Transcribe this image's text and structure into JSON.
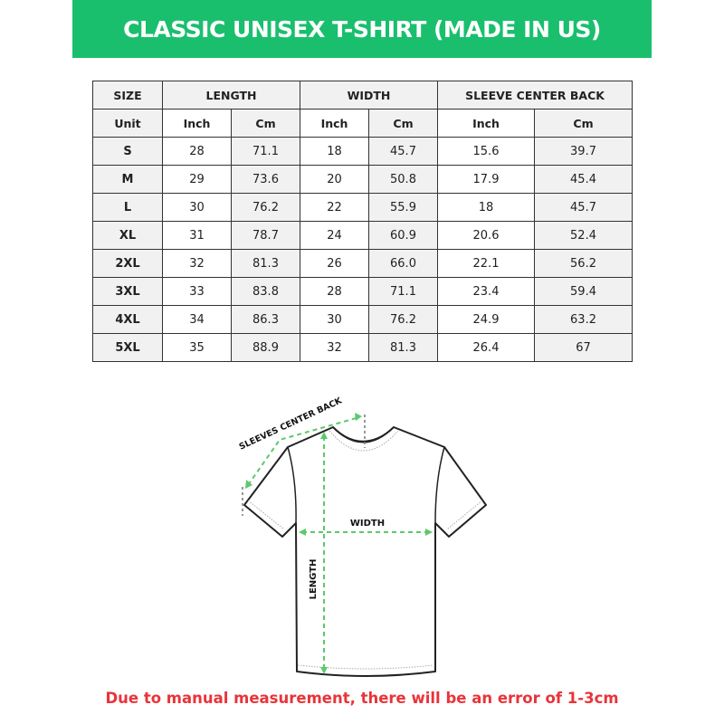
{
  "title": "CLASSIC UNISEX T-SHIRT (MADE IN US)",
  "table": {
    "headers": [
      "SIZE",
      "LENGTH",
      "WIDTH",
      "SLEEVE CENTER BACK"
    ],
    "units": [
      "Unit",
      "Inch",
      "Cm",
      "Inch",
      "Cm",
      "Inch",
      "Cm"
    ],
    "rows": [
      [
        "S",
        "28",
        "71.1",
        "18",
        "45.7",
        "15.6",
        "39.7"
      ],
      [
        "M",
        "29",
        "73.6",
        "20",
        "50.8",
        "17.9",
        "45.4"
      ],
      [
        "L",
        "30",
        "76.2",
        "22",
        "55.9",
        "18",
        "45.7"
      ],
      [
        "XL",
        "31",
        "78.7",
        "24",
        "60.9",
        "20.6",
        "52.4"
      ],
      [
        "2XL",
        "32",
        "81.3",
        "26",
        "66.0",
        "22.1",
        "56.2"
      ],
      [
        "3XL",
        "33",
        "83.8",
        "28",
        "71.1",
        "23.4",
        "59.4"
      ],
      [
        "4XL",
        "34",
        "86.3",
        "30",
        "76.2",
        "24.9",
        "63.2"
      ],
      [
        "5XL",
        "35",
        "88.9",
        "32",
        "81.3",
        "26.4",
        "67"
      ]
    ]
  },
  "diagram": {
    "sleeve_label": "SLEEVES CENTER BACK",
    "width_label": "WIDTH",
    "length_label": "LENGTH"
  },
  "note": "Due to manual measurement, there will be an error of 1-3cm",
  "colors": {
    "brand": "#19bf6d",
    "arrow": "#5cc96b",
    "note": "#e8343a"
  }
}
